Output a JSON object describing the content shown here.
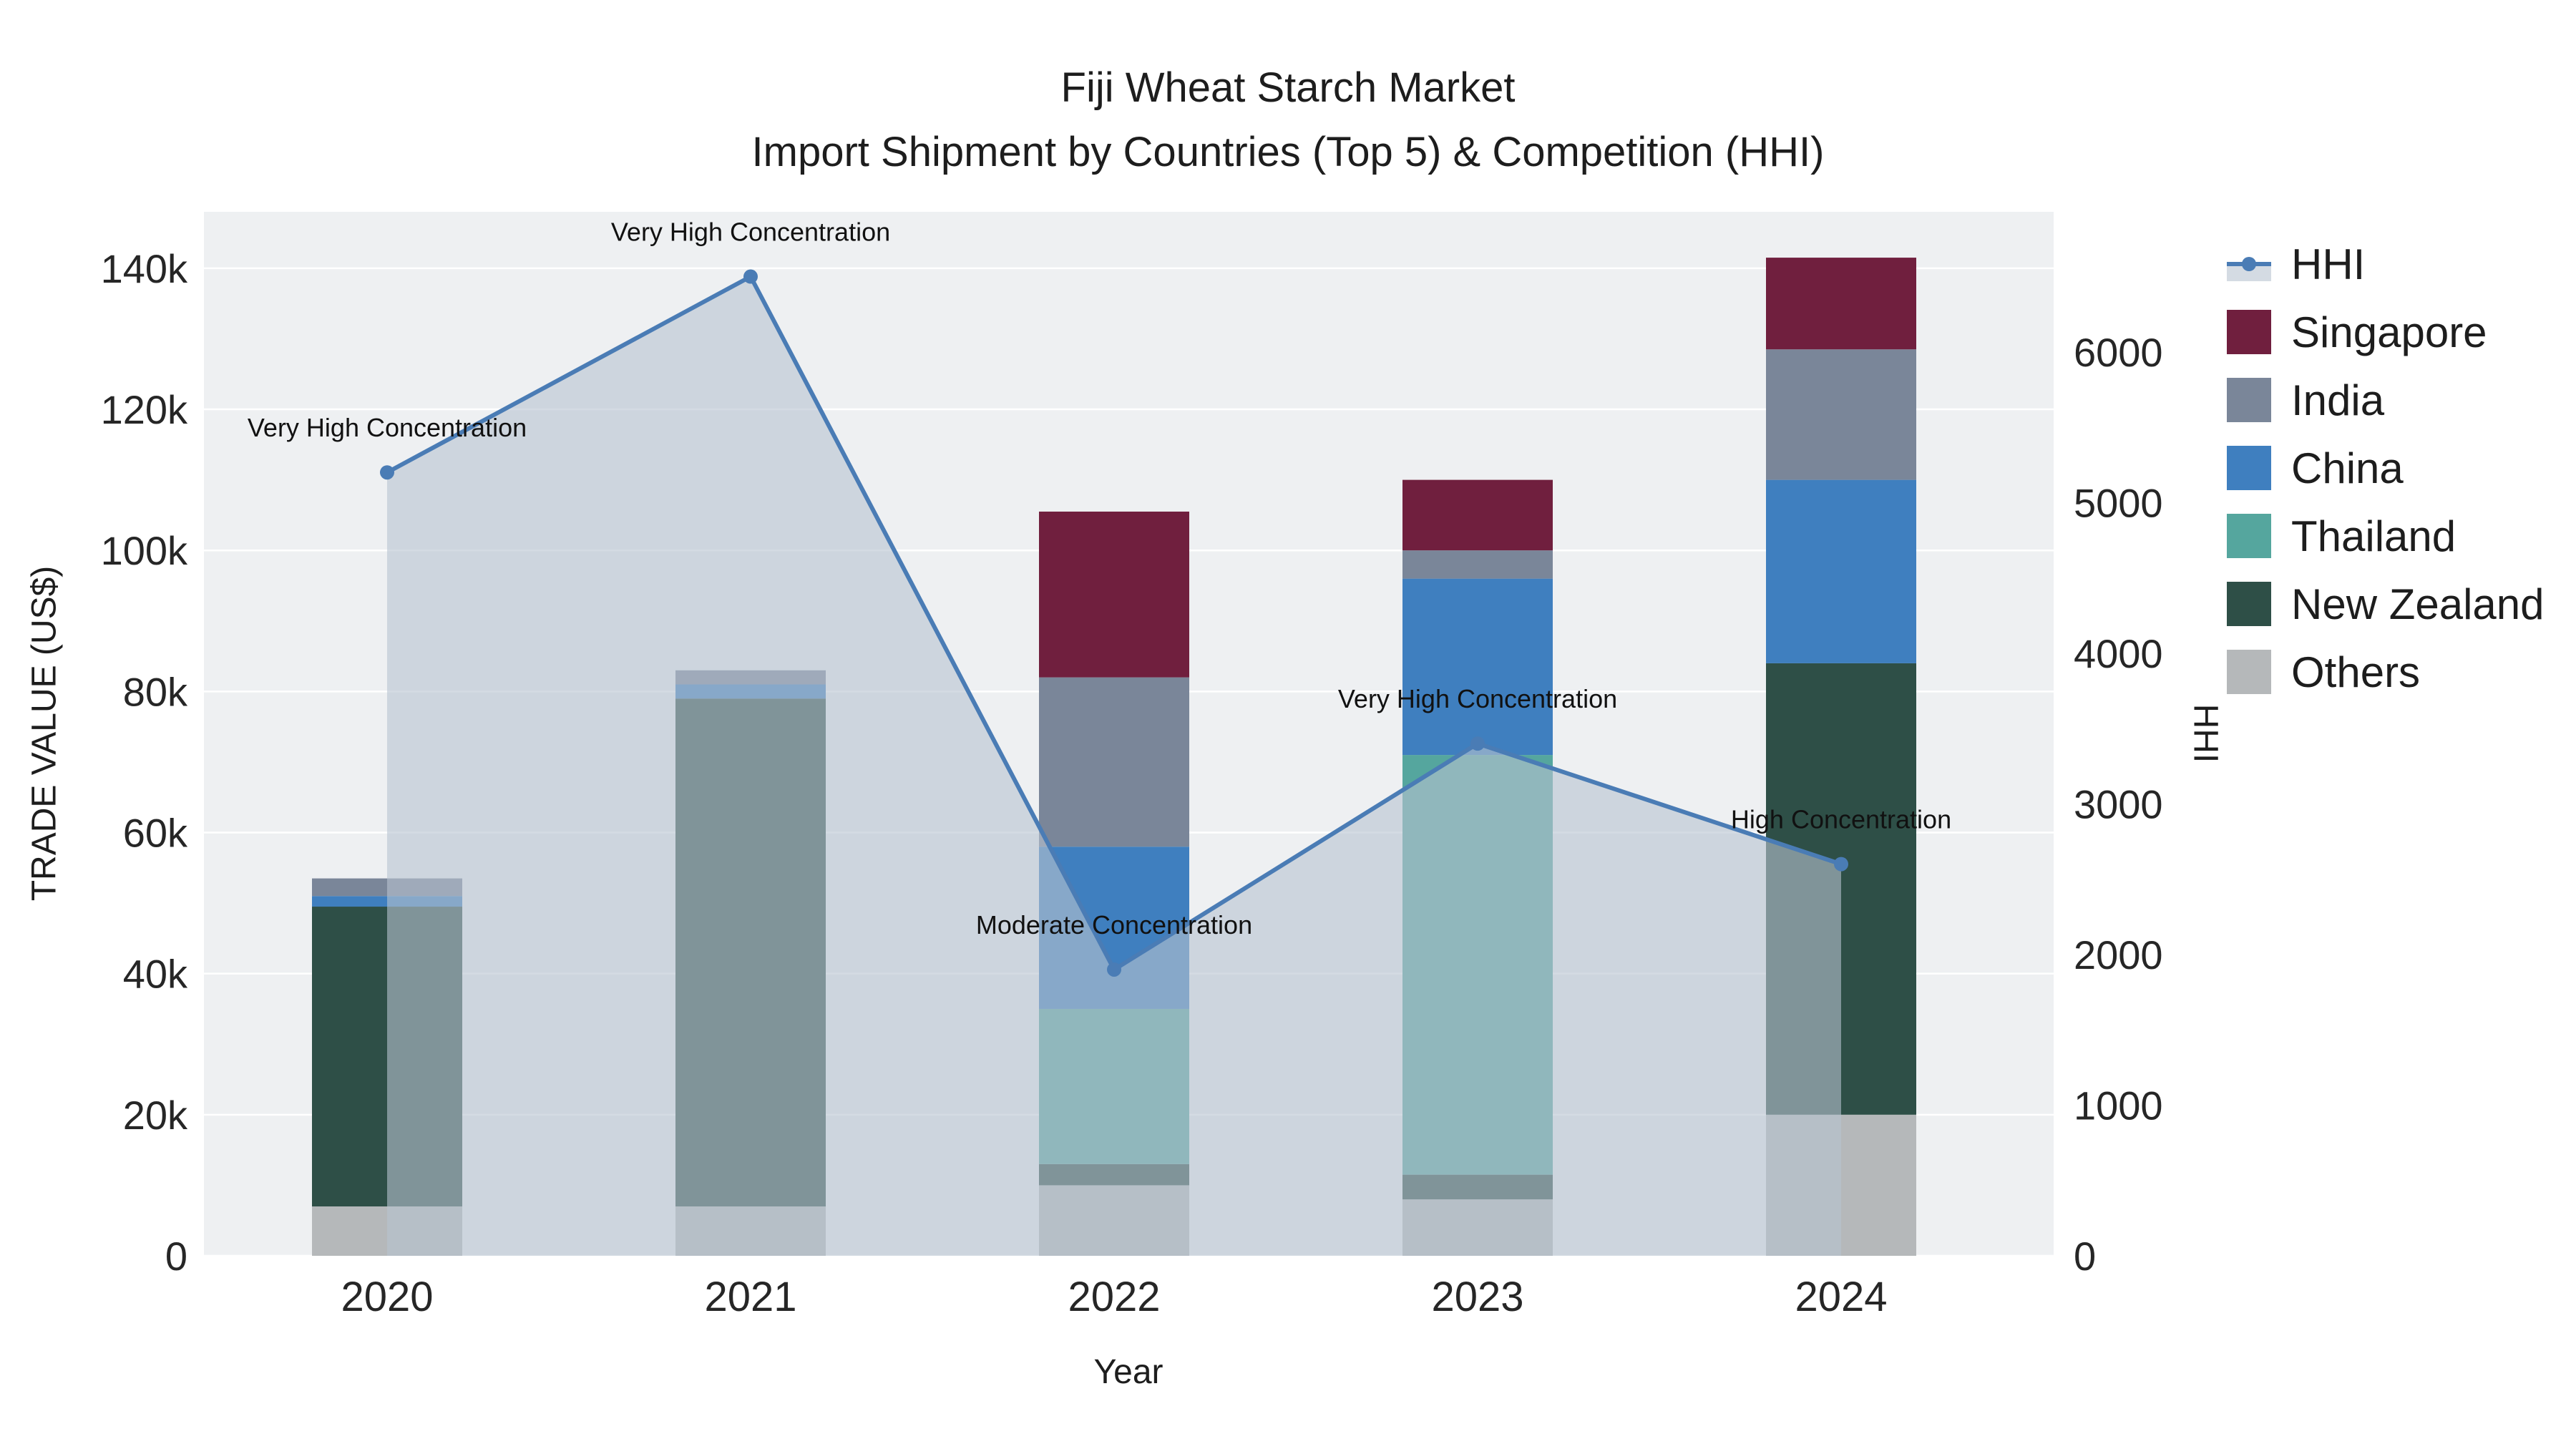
{
  "title": {
    "line1": "Fiji Wheat Starch Market",
    "line2": "Import Shipment by Countries (Top 5) & Competition (HHI)"
  },
  "chart_data": {
    "type": "bar",
    "subtype": "stacked-bar-with-line-overlay",
    "title": "Fiji Wheat Starch Market Import Shipment by Countries (Top 5) & Competition (HHI)",
    "categories": [
      "2020",
      "2021",
      "2022",
      "2023",
      "2024"
    ],
    "series": [
      {
        "name": "Singapore",
        "color": "#701f3e",
        "values": [
          0,
          0,
          23500,
          10000,
          13000
        ]
      },
      {
        "name": "India",
        "color": "#7a8699",
        "values": [
          2500,
          2000,
          24000,
          4000,
          18500
        ]
      },
      {
        "name": "China",
        "color": "#3f7fbf",
        "values": [
          1500,
          2000,
          23000,
          25000,
          26000
        ]
      },
      {
        "name": "Thailand",
        "color": "#55a69e",
        "values": [
          0,
          0,
          22000,
          59500,
          0
        ]
      },
      {
        "name": "New Zealand",
        "color": "#2e4f47",
        "values": [
          42500,
          72000,
          3000,
          3500,
          64000
        ]
      },
      {
        "name": "Others",
        "color": "#b5b8ba",
        "values": [
          7000,
          7000,
          10000,
          8000,
          20000
        ]
      }
    ],
    "stack_order_bottom_to_top": [
      "Others",
      "New Zealand",
      "Thailand",
      "China",
      "India",
      "Singapore"
    ],
    "line_series": {
      "name": "HHI",
      "color": "#4a7cb5",
      "fill_color": "rgba(183,195,208,0.6)",
      "values": [
        5200,
        6500,
        1900,
        3400,
        2600
      ]
    },
    "annotations": [
      "Very High Concentration",
      "Very High Concentration",
      "Moderate Concentration",
      "Very High Concentration",
      "High Concentration"
    ],
    "xlabel": "Year",
    "ylabel_left": "TRADE VALUE (US$)",
    "ylabel_right": "HHI",
    "y_left": {
      "max": 148000,
      "ticks": [
        0,
        20000,
        40000,
        60000,
        80000,
        100000,
        120000,
        140000
      ],
      "tick_labels": [
        "0",
        "20k",
        "40k",
        "60k",
        "80k",
        "100k",
        "120k",
        "140k"
      ]
    },
    "y_right": {
      "max": 6930,
      "ticks": [
        0,
        1000,
        2000,
        3000,
        4000,
        5000,
        6000
      ],
      "tick_labels": [
        "0",
        "1000",
        "2000",
        "3000",
        "4000",
        "5000",
        "6000"
      ]
    },
    "legend": [
      "HHI",
      "Singapore",
      "India",
      "China",
      "Thailand",
      "New Zealand",
      "Others"
    ],
    "legend_position": "right",
    "grid": "horizontal-white",
    "plot_bg": "#eef0f2"
  }
}
